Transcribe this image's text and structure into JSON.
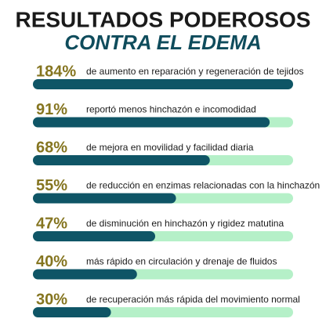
{
  "chart_data": {
    "type": "progress",
    "title": "RESULTADOS PODEROSOS",
    "subtitle": "CONTRA EL EDEMA",
    "values": [
      184,
      91,
      68,
      55,
      47,
      40,
      30
    ],
    "value_labels": [
      "184%",
      "91%",
      "68%",
      "55%",
      "47%",
      "40%",
      "30%"
    ],
    "categories": [
      "de aumento en reparación y regeneración de tejidos",
      "reportó menos hinchazón e incomodidad",
      "de mejora en movilidad y facilidad diaria",
      "de reducción en enzimas relacionadas con la hinchazón",
      "de disminución en hinchazón y rigidez matutina",
      "más rápido en circulación y drenaje de fluidos",
      "de recuperación más rápida del movimiento normal"
    ],
    "xlim": [
      0,
      100
    ],
    "color": "#0f5566",
    "track_color": "#b5f0c8",
    "label_color": "#857520"
  }
}
